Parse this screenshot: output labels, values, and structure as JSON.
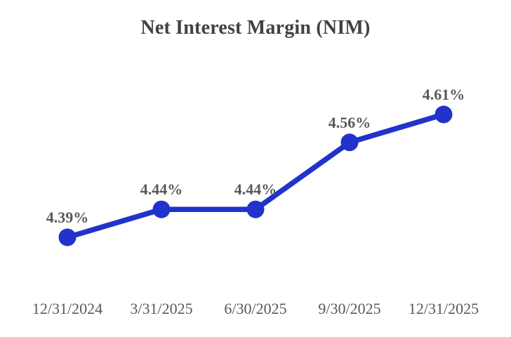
{
  "chart_data": {
    "type": "line",
    "title": "Net Interest Margin (NIM)",
    "categories": [
      "12/31/2024",
      "3/31/2025",
      "6/30/2025",
      "9/30/2025",
      "12/31/2025"
    ],
    "values": [
      4.39,
      4.44,
      4.44,
      4.56,
      4.61
    ],
    "point_labels": [
      "4.39%",
      "4.44%",
      "4.44%",
      "4.56%",
      "4.61%"
    ],
    "xlabel": "",
    "ylabel": "",
    "legend": "none",
    "grid": false,
    "axes_visible": false,
    "colors": {
      "line": "#2033cb",
      "marker": "#2033cb",
      "title_text": "#414141",
      "label_text": "#595959",
      "background": "#ffffff"
    }
  }
}
